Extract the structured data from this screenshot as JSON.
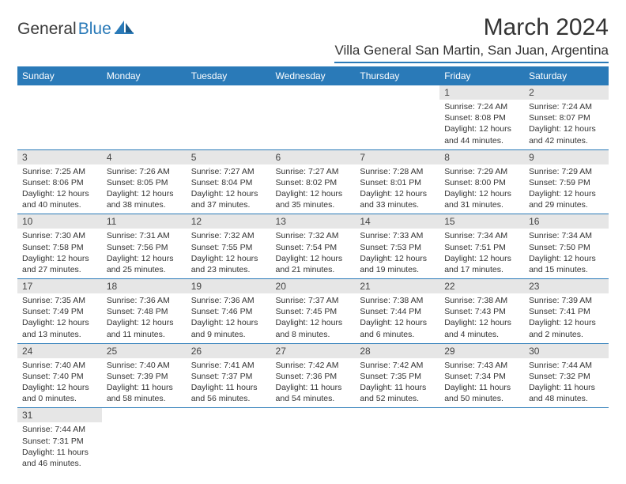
{
  "brand": {
    "text1": "General",
    "text2": "Blue"
  },
  "title": "March 2024",
  "location": "Villa General San Martin, San Juan, Argentina",
  "colors": {
    "accent": "#2a7ab8",
    "dayHeader": "#e6e6e6",
    "bg": "#ffffff"
  },
  "weekdays": [
    "Sunday",
    "Monday",
    "Tuesday",
    "Wednesday",
    "Thursday",
    "Friday",
    "Saturday"
  ],
  "weeks": [
    [
      null,
      null,
      null,
      null,
      null,
      {
        "n": "1",
        "sr": "Sunrise: 7:24 AM",
        "ss": "Sunset: 8:08 PM",
        "d1": "Daylight: 12 hours",
        "d2": "and 44 minutes."
      },
      {
        "n": "2",
        "sr": "Sunrise: 7:24 AM",
        "ss": "Sunset: 8:07 PM",
        "d1": "Daylight: 12 hours",
        "d2": "and 42 minutes."
      }
    ],
    [
      {
        "n": "3",
        "sr": "Sunrise: 7:25 AM",
        "ss": "Sunset: 8:06 PM",
        "d1": "Daylight: 12 hours",
        "d2": "and 40 minutes."
      },
      {
        "n": "4",
        "sr": "Sunrise: 7:26 AM",
        "ss": "Sunset: 8:05 PM",
        "d1": "Daylight: 12 hours",
        "d2": "and 38 minutes."
      },
      {
        "n": "5",
        "sr": "Sunrise: 7:27 AM",
        "ss": "Sunset: 8:04 PM",
        "d1": "Daylight: 12 hours",
        "d2": "and 37 minutes."
      },
      {
        "n": "6",
        "sr": "Sunrise: 7:27 AM",
        "ss": "Sunset: 8:02 PM",
        "d1": "Daylight: 12 hours",
        "d2": "and 35 minutes."
      },
      {
        "n": "7",
        "sr": "Sunrise: 7:28 AM",
        "ss": "Sunset: 8:01 PM",
        "d1": "Daylight: 12 hours",
        "d2": "and 33 minutes."
      },
      {
        "n": "8",
        "sr": "Sunrise: 7:29 AM",
        "ss": "Sunset: 8:00 PM",
        "d1": "Daylight: 12 hours",
        "d2": "and 31 minutes."
      },
      {
        "n": "9",
        "sr": "Sunrise: 7:29 AM",
        "ss": "Sunset: 7:59 PM",
        "d1": "Daylight: 12 hours",
        "d2": "and 29 minutes."
      }
    ],
    [
      {
        "n": "10",
        "sr": "Sunrise: 7:30 AM",
        "ss": "Sunset: 7:58 PM",
        "d1": "Daylight: 12 hours",
        "d2": "and 27 minutes."
      },
      {
        "n": "11",
        "sr": "Sunrise: 7:31 AM",
        "ss": "Sunset: 7:56 PM",
        "d1": "Daylight: 12 hours",
        "d2": "and 25 minutes."
      },
      {
        "n": "12",
        "sr": "Sunrise: 7:32 AM",
        "ss": "Sunset: 7:55 PM",
        "d1": "Daylight: 12 hours",
        "d2": "and 23 minutes."
      },
      {
        "n": "13",
        "sr": "Sunrise: 7:32 AM",
        "ss": "Sunset: 7:54 PM",
        "d1": "Daylight: 12 hours",
        "d2": "and 21 minutes."
      },
      {
        "n": "14",
        "sr": "Sunrise: 7:33 AM",
        "ss": "Sunset: 7:53 PM",
        "d1": "Daylight: 12 hours",
        "d2": "and 19 minutes."
      },
      {
        "n": "15",
        "sr": "Sunrise: 7:34 AM",
        "ss": "Sunset: 7:51 PM",
        "d1": "Daylight: 12 hours",
        "d2": "and 17 minutes."
      },
      {
        "n": "16",
        "sr": "Sunrise: 7:34 AM",
        "ss": "Sunset: 7:50 PM",
        "d1": "Daylight: 12 hours",
        "d2": "and 15 minutes."
      }
    ],
    [
      {
        "n": "17",
        "sr": "Sunrise: 7:35 AM",
        "ss": "Sunset: 7:49 PM",
        "d1": "Daylight: 12 hours",
        "d2": "and 13 minutes."
      },
      {
        "n": "18",
        "sr": "Sunrise: 7:36 AM",
        "ss": "Sunset: 7:48 PM",
        "d1": "Daylight: 12 hours",
        "d2": "and 11 minutes."
      },
      {
        "n": "19",
        "sr": "Sunrise: 7:36 AM",
        "ss": "Sunset: 7:46 PM",
        "d1": "Daylight: 12 hours",
        "d2": "and 9 minutes."
      },
      {
        "n": "20",
        "sr": "Sunrise: 7:37 AM",
        "ss": "Sunset: 7:45 PM",
        "d1": "Daylight: 12 hours",
        "d2": "and 8 minutes."
      },
      {
        "n": "21",
        "sr": "Sunrise: 7:38 AM",
        "ss": "Sunset: 7:44 PM",
        "d1": "Daylight: 12 hours",
        "d2": "and 6 minutes."
      },
      {
        "n": "22",
        "sr": "Sunrise: 7:38 AM",
        "ss": "Sunset: 7:43 PM",
        "d1": "Daylight: 12 hours",
        "d2": "and 4 minutes."
      },
      {
        "n": "23",
        "sr": "Sunrise: 7:39 AM",
        "ss": "Sunset: 7:41 PM",
        "d1": "Daylight: 12 hours",
        "d2": "and 2 minutes."
      }
    ],
    [
      {
        "n": "24",
        "sr": "Sunrise: 7:40 AM",
        "ss": "Sunset: 7:40 PM",
        "d1": "Daylight: 12 hours",
        "d2": "and 0 minutes."
      },
      {
        "n": "25",
        "sr": "Sunrise: 7:40 AM",
        "ss": "Sunset: 7:39 PM",
        "d1": "Daylight: 11 hours",
        "d2": "and 58 minutes."
      },
      {
        "n": "26",
        "sr": "Sunrise: 7:41 AM",
        "ss": "Sunset: 7:37 PM",
        "d1": "Daylight: 11 hours",
        "d2": "and 56 minutes."
      },
      {
        "n": "27",
        "sr": "Sunrise: 7:42 AM",
        "ss": "Sunset: 7:36 PM",
        "d1": "Daylight: 11 hours",
        "d2": "and 54 minutes."
      },
      {
        "n": "28",
        "sr": "Sunrise: 7:42 AM",
        "ss": "Sunset: 7:35 PM",
        "d1": "Daylight: 11 hours",
        "d2": "and 52 minutes."
      },
      {
        "n": "29",
        "sr": "Sunrise: 7:43 AM",
        "ss": "Sunset: 7:34 PM",
        "d1": "Daylight: 11 hours",
        "d2": "and 50 minutes."
      },
      {
        "n": "30",
        "sr": "Sunrise: 7:44 AM",
        "ss": "Sunset: 7:32 PM",
        "d1": "Daylight: 11 hours",
        "d2": "and 48 minutes."
      }
    ],
    [
      {
        "n": "31",
        "sr": "Sunrise: 7:44 AM",
        "ss": "Sunset: 7:31 PM",
        "d1": "Daylight: 11 hours",
        "d2": "and 46 minutes."
      },
      null,
      null,
      null,
      null,
      null,
      null
    ]
  ]
}
